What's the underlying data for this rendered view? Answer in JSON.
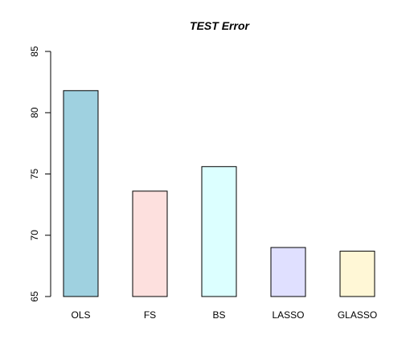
{
  "chart_data": {
    "type": "bar",
    "title": "TEST Error",
    "xlabel": "",
    "ylabel": "",
    "categories": [
      "OLS",
      "FS",
      "BS",
      "LASSO",
      "GLASSO"
    ],
    "values": [
      81.8,
      73.6,
      75.6,
      69.0,
      68.7
    ],
    "colors": [
      "#9fd1e0",
      "#fde0de",
      "#dcffff",
      "#e0e0ff",
      "#fff7d6"
    ],
    "ylim": [
      65,
      85
    ],
    "yticks": [
      65,
      70,
      75,
      80,
      85
    ],
    "grid": false,
    "legend": "none"
  }
}
